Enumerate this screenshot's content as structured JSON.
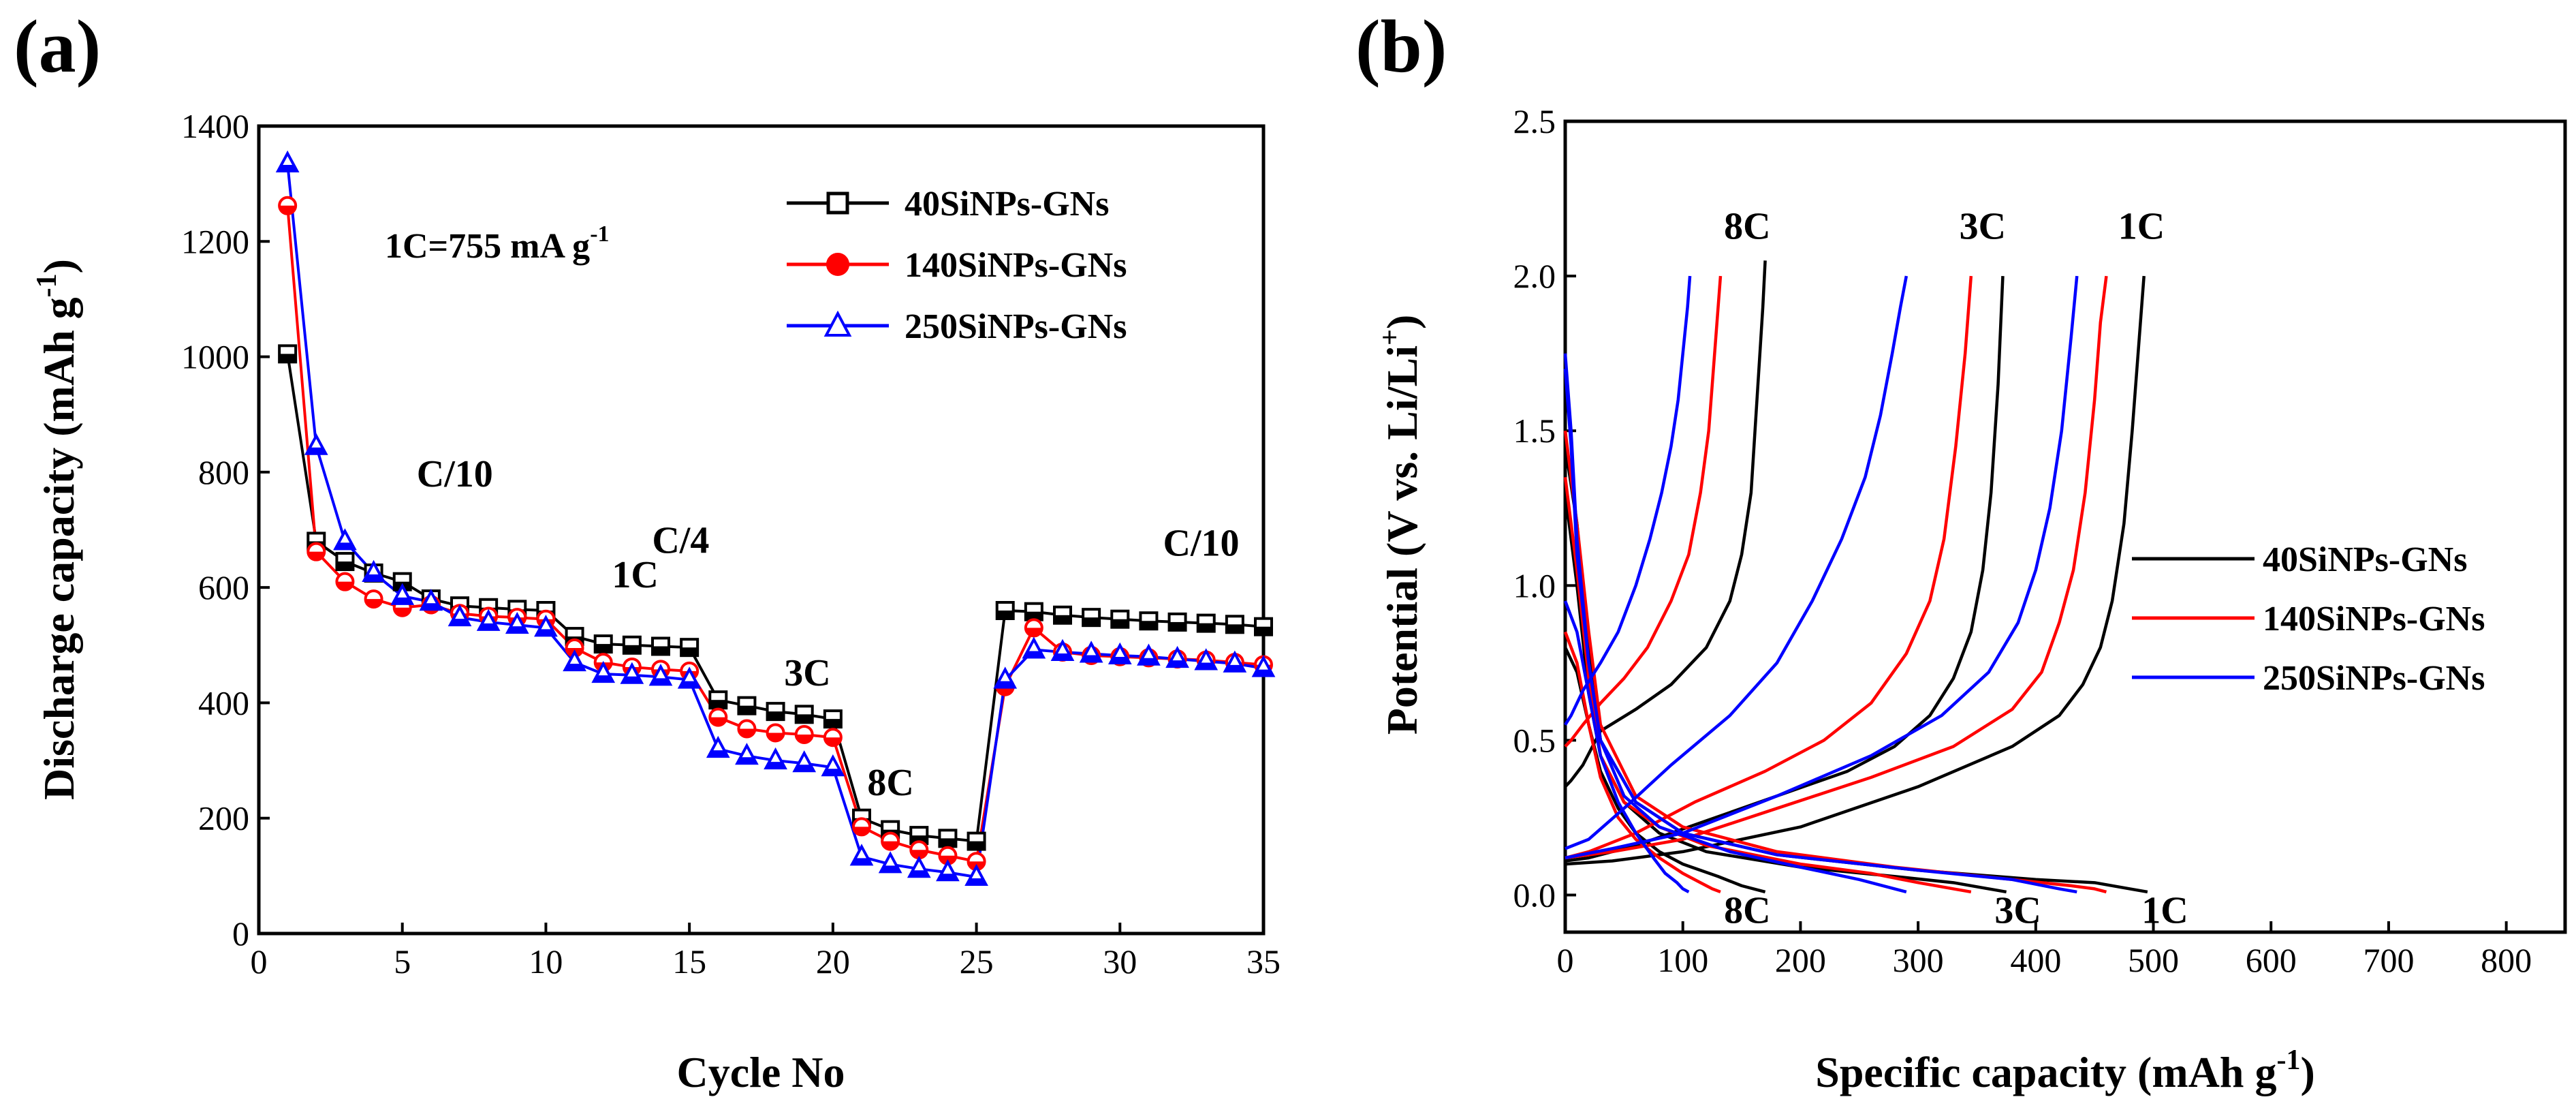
{
  "chart_data": [
    {
      "type": "scatter",
      "panel_label": "(a)",
      "xlabel": "Cycle No",
      "ylabel": "Discharge capacity (mAh g",
      "ylabel_sup": "-1",
      "ylabel_tail": ")",
      "xlim": [
        0,
        35
      ],
      "ylim": [
        0,
        1400
      ],
      "xticks": [
        0,
        5,
        10,
        15,
        20,
        25,
        30,
        35
      ],
      "yticks": [
        0,
        200,
        400,
        600,
        800,
        1000,
        1200,
        1400
      ],
      "note": "1C=755 mA g",
      "note_sup": "-1",
      "legend_position": "top-right",
      "annotations": [
        {
          "text": "C/10",
          "x": 5.5,
          "y": 775
        },
        {
          "text": "C/4",
          "x": 13.7,
          "y": 660
        },
        {
          "text": "1C",
          "x": 12.3,
          "y": 600
        },
        {
          "text": "3C",
          "x": 18.3,
          "y": 430
        },
        {
          "text": "8C",
          "x": 21.2,
          "y": 240
        },
        {
          "text": "C/10",
          "x": 31.5,
          "y": 655
        }
      ],
      "series": [
        {
          "name": "40SiNPs-GNs",
          "color": "#000000",
          "marker": "square",
          "x": [
            1,
            2,
            3,
            4,
            5,
            6,
            7,
            8,
            9,
            10,
            11,
            12,
            13,
            14,
            15,
            16,
            17,
            18,
            19,
            20,
            21,
            22,
            23,
            24,
            25,
            26,
            27,
            28,
            29,
            30,
            31,
            32,
            33,
            34,
            35
          ],
          "values": [
            1005,
            680,
            645,
            625,
            610,
            580,
            568,
            565,
            562,
            560,
            515,
            502,
            500,
            498,
            496,
            405,
            395,
            385,
            380,
            372,
            200,
            180,
            170,
            165,
            160,
            560,
            558,
            552,
            548,
            545,
            542,
            540,
            538,
            536,
            532
          ]
        },
        {
          "name": "140SiNPs-GNs",
          "color": "#ff0000",
          "marker": "circle",
          "x": [
            1,
            2,
            3,
            4,
            5,
            6,
            7,
            8,
            9,
            10,
            11,
            12,
            13,
            14,
            15,
            16,
            17,
            18,
            19,
            20,
            21,
            22,
            23,
            24,
            25,
            26,
            27,
            28,
            29,
            30,
            31,
            32,
            33,
            34,
            35
          ],
          "values": [
            1262,
            662,
            610,
            580,
            565,
            570,
            555,
            550,
            548,
            545,
            495,
            470,
            462,
            458,
            455,
            375,
            355,
            348,
            345,
            340,
            185,
            160,
            145,
            135,
            125,
            428,
            530,
            488,
            482,
            480,
            478,
            476,
            474,
            470,
            466
          ]
        },
        {
          "name": "250SiNPs-GNs",
          "color": "#0000ff",
          "marker": "triangle",
          "x": [
            1,
            2,
            3,
            4,
            5,
            6,
            7,
            8,
            9,
            10,
            11,
            12,
            13,
            14,
            15,
            16,
            17,
            18,
            19,
            20,
            21,
            22,
            23,
            24,
            25,
            26,
            27,
            28,
            29,
            30,
            31,
            32,
            33,
            34,
            35
          ],
          "values": [
            1335,
            845,
            680,
            625,
            585,
            575,
            548,
            540,
            535,
            530,
            470,
            450,
            448,
            445,
            440,
            320,
            308,
            300,
            295,
            288,
            133,
            120,
            112,
            106,
            98,
            440,
            492,
            488,
            485,
            482,
            480,
            476,
            472,
            468,
            460
          ]
        }
      ]
    },
    {
      "type": "line",
      "panel_label": "(b)",
      "xlabel": "Specific capacity (mAh g",
      "xlabel_sup": "-1",
      "xlabel_tail": ")",
      "ylabel": "Potential (V vs. Li/Li",
      "ylabel_sup": "+",
      "ylabel_tail": ")",
      "xlim": [
        0,
        850
      ],
      "ylim": [
        -0.12,
        2.5
      ],
      "xticks": [
        0,
        100,
        200,
        300,
        400,
        500,
        600,
        700,
        800
      ],
      "yticks": [
        0.0,
        0.5,
        1.0,
        1.5,
        2.0,
        2.5
      ],
      "legend_position": "center-right",
      "legend": [
        {
          "name": "40SiNPs-GNs",
          "color": "#000000"
        },
        {
          "name": "140SiNPs-GNs",
          "color": "#ff0000"
        },
        {
          "name": "250SiNPs-GNs",
          "color": "#0000ff"
        }
      ],
      "annotations": [
        {
          "text": "8C",
          "x": 135,
          "y": 2.12
        },
        {
          "text": "3C",
          "x": 335,
          "y": 2.12
        },
        {
          "text": "1C",
          "x": 470,
          "y": 2.12
        },
        {
          "text": "8C",
          "x": 135,
          "y": -0.09
        },
        {
          "text": "3C",
          "x": 365,
          "y": -0.09
        },
        {
          "text": "1C",
          "x": 490,
          "y": -0.09
        }
      ],
      "series": [
        {
          "name": "40SiNPs-GNs 8C discharge",
          "color": "#000000",
          "x": [
            0,
            10,
            20,
            30,
            45,
            60,
            80,
            100,
            130,
            150,
            170
          ],
          "y": [
            0.8,
            0.72,
            0.55,
            0.4,
            0.28,
            0.2,
            0.14,
            0.1,
            0.06,
            0.03,
            0.01
          ]
        },
        {
          "name": "40SiNPs-GNs 8C charge",
          "color": "#000000",
          "x": [
            0,
            5,
            15,
            30,
            60,
            90,
            120,
            140,
            150,
            158,
            163,
            168,
            170
          ],
          "y": [
            0.35,
            0.37,
            0.42,
            0.53,
            0.6,
            0.68,
            0.8,
            0.95,
            1.1,
            1.3,
            1.6,
            1.9,
            2.05
          ]
        },
        {
          "name": "40SiNPs-GNs 3C discharge",
          "color": "#000000",
          "x": [
            0,
            10,
            20,
            30,
            50,
            80,
            120,
            200,
            280,
            330,
            360,
            375
          ],
          "y": [
            1.3,
            1.0,
            0.65,
            0.45,
            0.3,
            0.2,
            0.14,
            0.09,
            0.06,
            0.04,
            0.02,
            0.01
          ]
        },
        {
          "name": "40SiNPs-GNs 3C charge",
          "color": "#000000",
          "x": [
            0,
            20,
            60,
            120,
            180,
            240,
            280,
            310,
            330,
            345,
            355,
            362,
            368,
            372
          ],
          "y": [
            0.11,
            0.12,
            0.16,
            0.24,
            0.32,
            0.4,
            0.48,
            0.58,
            0.7,
            0.85,
            1.05,
            1.3,
            1.65,
            2.0
          ]
        },
        {
          "name": "40SiNPs-GNs 1C discharge",
          "color": "#000000",
          "x": [
            0,
            10,
            20,
            30,
            60,
            100,
            180,
            300,
            400,
            450,
            480,
            495
          ],
          "y": [
            1.45,
            1.2,
            0.8,
            0.5,
            0.3,
            0.2,
            0.13,
            0.08,
            0.05,
            0.04,
            0.02,
            0.01
          ]
        },
        {
          "name": "40SiNPs-GNs 1C charge",
          "color": "#000000",
          "x": [
            0,
            40,
            100,
            200,
            300,
            380,
            420,
            440,
            455,
            465,
            475,
            482,
            488,
            492
          ],
          "y": [
            0.1,
            0.11,
            0.14,
            0.22,
            0.35,
            0.48,
            0.58,
            0.68,
            0.8,
            0.95,
            1.2,
            1.5,
            1.8,
            2.0
          ]
        },
        {
          "name": "140SiNPs-GNs 8C discharge",
          "color": "#ff0000",
          "x": [
            0,
            10,
            20,
            30,
            45,
            60,
            80,
            100,
            115,
            125,
            132
          ],
          "y": [
            0.85,
            0.75,
            0.55,
            0.38,
            0.25,
            0.18,
            0.12,
            0.07,
            0.04,
            0.02,
            0.01
          ]
        },
        {
          "name": "140SiNPs-GNs 8C charge",
          "color": "#ff0000",
          "x": [
            0,
            5,
            15,
            30,
            50,
            70,
            90,
            105,
            115,
            122,
            126,
            130,
            132
          ],
          "y": [
            0.48,
            0.5,
            0.55,
            0.62,
            0.7,
            0.8,
            0.95,
            1.1,
            1.3,
            1.5,
            1.7,
            1.9,
            2.0
          ]
        },
        {
          "name": "140SiNPs-GNs 3C discharge",
          "color": "#ff0000",
          "x": [
            0,
            10,
            20,
            30,
            50,
            80,
            120,
            200,
            260,
            300,
            330,
            345
          ],
          "y": [
            1.35,
            1.05,
            0.7,
            0.45,
            0.3,
            0.22,
            0.16,
            0.1,
            0.07,
            0.04,
            0.02,
            0.01
          ]
        },
        {
          "name": "140SiNPs-GNs 3C charge",
          "color": "#ff0000",
          "x": [
            0,
            20,
            60,
            110,
            170,
            220,
            260,
            290,
            310,
            322,
            332,
            340,
            345
          ],
          "y": [
            0.12,
            0.14,
            0.2,
            0.3,
            0.4,
            0.5,
            0.62,
            0.78,
            0.95,
            1.15,
            1.45,
            1.75,
            2.0
          ]
        },
        {
          "name": "140SiNPs-GNs 1C discharge",
          "color": "#ff0000",
          "x": [
            0,
            10,
            20,
            30,
            60,
            100,
            180,
            280,
            380,
            430,
            450,
            460
          ],
          "y": [
            1.5,
            1.2,
            0.85,
            0.55,
            0.32,
            0.22,
            0.14,
            0.09,
            0.05,
            0.03,
            0.02,
            0.01
          ]
        },
        {
          "name": "140SiNPs-GNs 1C charge",
          "color": "#ff0000",
          "x": [
            0,
            40,
            100,
            180,
            260,
            330,
            380,
            405,
            420,
            432,
            442,
            450,
            455,
            460
          ],
          "y": [
            0.12,
            0.14,
            0.18,
            0.28,
            0.38,
            0.48,
            0.6,
            0.72,
            0.88,
            1.05,
            1.3,
            1.6,
            1.85,
            2.0
          ]
        },
        {
          "name": "250SiNPs-GNs 8C discharge",
          "color": "#0000ff",
          "x": [
            0,
            10,
            20,
            30,
            45,
            60,
            75,
            85,
            95,
            100,
            105
          ],
          "y": [
            0.95,
            0.85,
            0.65,
            0.45,
            0.3,
            0.2,
            0.12,
            0.07,
            0.04,
            0.02,
            0.01
          ]
        },
        {
          "name": "250SiNPs-GNs 8C charge",
          "color": "#0000ff",
          "x": [
            0,
            5,
            15,
            30,
            45,
            60,
            72,
            82,
            90,
            96,
            100,
            104,
            106
          ],
          "y": [
            0.55,
            0.58,
            0.66,
            0.75,
            0.85,
            1.0,
            1.15,
            1.3,
            1.45,
            1.6,
            1.75,
            1.9,
            2.0
          ]
        },
        {
          "name": "250SiNPs-GNs 3C discharge",
          "color": "#0000ff",
          "x": [
            0,
            5,
            10,
            20,
            30,
            50,
            80,
            140,
            200,
            250,
            280,
            290
          ],
          "y": [
            1.75,
            1.5,
            1.15,
            0.75,
            0.5,
            0.32,
            0.22,
            0.14,
            0.09,
            0.05,
            0.02,
            0.01
          ]
        },
        {
          "name": "250SiNPs-GNs 3C charge",
          "color": "#0000ff",
          "x": [
            0,
            20,
            50,
            90,
            140,
            180,
            210,
            235,
            255,
            268,
            278,
            285,
            290
          ],
          "y": [
            0.15,
            0.18,
            0.28,
            0.42,
            0.58,
            0.75,
            0.95,
            1.15,
            1.35,
            1.55,
            1.75,
            1.9,
            2.0
          ]
        },
        {
          "name": "250SiNPs-GNs 1C discharge",
          "color": "#0000ff",
          "x": [
            0,
            5,
            10,
            20,
            30,
            60,
            100,
            180,
            300,
            380,
            420,
            435
          ],
          "y": [
            1.7,
            1.45,
            1.1,
            0.75,
            0.5,
            0.3,
            0.2,
            0.13,
            0.08,
            0.05,
            0.02,
            0.01
          ]
        },
        {
          "name": "250SiNPs-GNs 1C charge",
          "color": "#0000ff",
          "x": [
            0,
            40,
            100,
            180,
            260,
            320,
            360,
            385,
            400,
            412,
            422,
            430,
            435
          ],
          "y": [
            0.12,
            0.15,
            0.2,
            0.32,
            0.45,
            0.58,
            0.72,
            0.88,
            1.05,
            1.25,
            1.5,
            1.8,
            2.0
          ]
        }
      ]
    }
  ]
}
